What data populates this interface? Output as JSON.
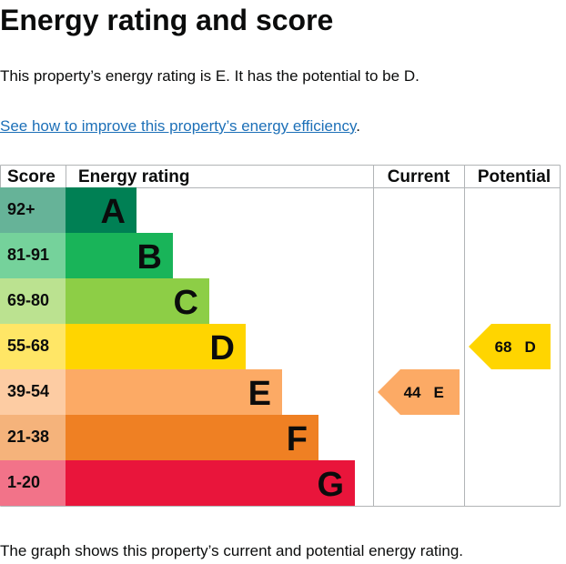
{
  "page": {
    "title": "Energy rating and score",
    "summary": "This property’s energy rating is E. It has the potential to be D.",
    "link_text": "See how to improve this property’s energy efficiency",
    "link_suffix": ".",
    "footer": "The graph shows this property’s current and potential energy rating."
  },
  "table": {
    "headers": {
      "score": "Score",
      "rating": "Energy rating",
      "current": "Current",
      "potential": "Potential"
    },
    "bands": [
      {
        "score": "92+",
        "letter": "A",
        "color": "#008054",
        "tint": "#66b398"
      },
      {
        "score": "81-91",
        "letter": "B",
        "color": "#19b459",
        "tint": "#75d29b"
      },
      {
        "score": "69-80",
        "letter": "C",
        "color": "#8dce46",
        "tint": "#bbe290"
      },
      {
        "score": "55-68",
        "letter": "D",
        "color": "#ffd500",
        "tint": "#ffe666"
      },
      {
        "score": "39-54",
        "letter": "E",
        "color": "#fcaa65",
        "tint": "#fdcca3"
      },
      {
        "score": "21-38",
        "letter": "F",
        "color": "#ef8023",
        "tint": "#f5b37b"
      },
      {
        "score": "1-20",
        "letter": "G",
        "color": "#e9153b",
        "tint": "#f27389"
      }
    ],
    "current": {
      "value": "44",
      "letter": "E",
      "band_index": 4,
      "color": "#fcaa65"
    },
    "potential": {
      "value": "68",
      "letter": "D",
      "band_index": 3,
      "color": "#ffd500"
    }
  }
}
